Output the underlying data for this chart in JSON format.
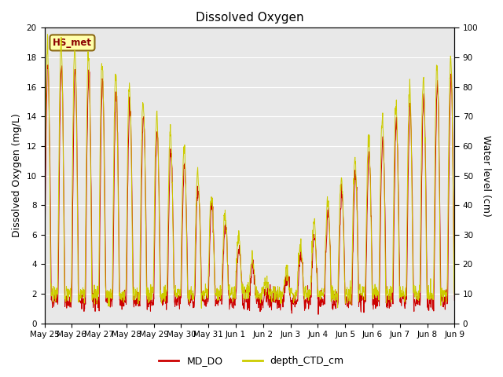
{
  "title": "Dissolved Oxygen",
  "ylabel_left": "Dissolved Oxygen (mg/L)",
  "ylabel_right": "Water level (cm)",
  "ylim_left": [
    0,
    20
  ],
  "ylim_right": [
    0,
    100
  ],
  "yticks_left": [
    0,
    2,
    4,
    6,
    8,
    10,
    12,
    14,
    16,
    18,
    20
  ],
  "yticks_right": [
    0,
    10,
    20,
    30,
    40,
    50,
    60,
    70,
    80,
    90,
    100
  ],
  "xtick_labels": [
    "May 25",
    "May 26",
    "May 27",
    "May 28",
    "May 29",
    "May 30",
    "May 31",
    "Jun 1",
    "Jun 2",
    "Jun 3",
    "Jun 4",
    "Jun 5",
    "Jun 6",
    "Jun 7",
    "Jun 8",
    "Jun 9"
  ],
  "color_DO": "#cc0000",
  "color_depth": "#cccc00",
  "label_DO": "MD_DO",
  "label_depth": "depth_CTD_cm",
  "annotation_text": "HS_met",
  "annotation_color": "#8b0000",
  "annotation_bg": "#ffffaa",
  "background_color": "#e8e8e8",
  "title_fontsize": 11,
  "axis_fontsize": 9,
  "legend_fontsize": 9,
  "figsize": [
    6.4,
    4.8
  ],
  "dpi": 100
}
